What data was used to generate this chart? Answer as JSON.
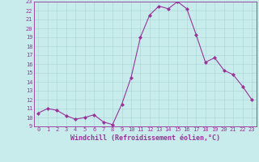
{
  "x": [
    0,
    1,
    2,
    3,
    4,
    5,
    6,
    7,
    8,
    9,
    10,
    11,
    12,
    13,
    14,
    15,
    16,
    17,
    18,
    19,
    20,
    21,
    22,
    23
  ],
  "y": [
    10.5,
    11.0,
    10.8,
    10.2,
    9.8,
    10.0,
    10.3,
    9.5,
    9.2,
    11.5,
    14.5,
    19.0,
    21.5,
    22.5,
    22.2,
    23.0,
    22.2,
    19.3,
    16.2,
    16.7,
    15.3,
    14.8,
    13.5,
    12.0
  ],
  "line_color": "#993399",
  "marker": "D",
  "marker_size": 2.0,
  "bg_color": "#c8ecec",
  "grid_color": "#b0d8d8",
  "xlabel": "Windchill (Refroidissement éolien,°C)",
  "ylim": [
    9,
    23
  ],
  "xlim_min": -0.5,
  "xlim_max": 23.5,
  "yticks": [
    9,
    10,
    11,
    12,
    13,
    14,
    15,
    16,
    17,
    18,
    19,
    20,
    21,
    22,
    23
  ],
  "xticks": [
    0,
    1,
    2,
    3,
    4,
    5,
    6,
    7,
    8,
    9,
    10,
    11,
    12,
    13,
    14,
    15,
    16,
    17,
    18,
    19,
    20,
    21,
    22,
    23
  ],
  "tick_fontsize": 5.0,
  "xlabel_fontsize": 6.0
}
